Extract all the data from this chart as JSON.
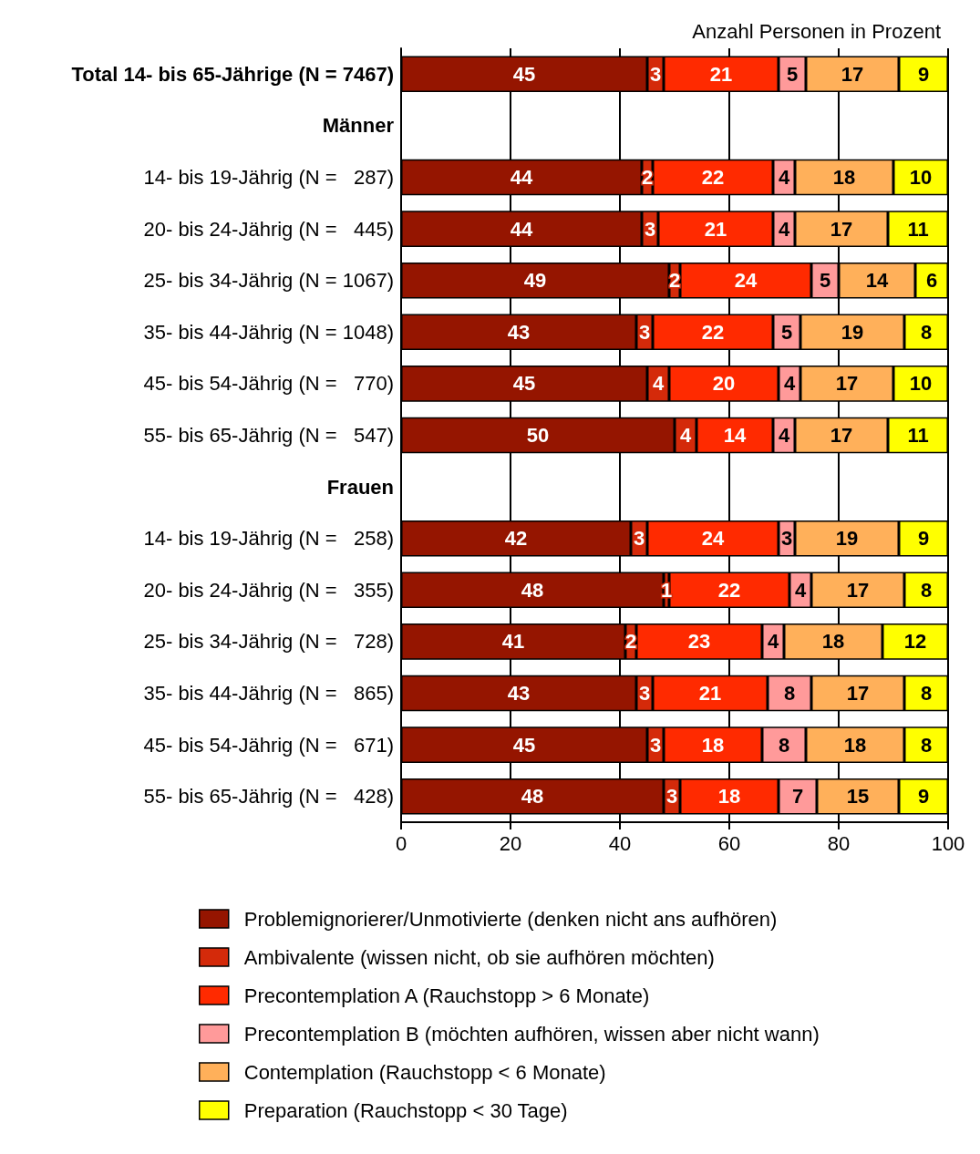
{
  "chart_data": {
    "type": "bar",
    "orientation": "horizontal",
    "stacked": true,
    "xlabel": "Anzahl Personen in Prozent",
    "categories": [
      "Total 14- bis 65-Jährige (N = 7467)",
      "Männer",
      "14- bis 19-Jährig (N =   287)",
      "20- bis 24-Jährig (N =   445)",
      "25- bis 34-Jährig (N = 1067)",
      "35- bis 44-Jährig (N = 1048)",
      "45- bis 54-Jährig (N =   770)",
      "55- bis 65-Jährig (N =   547)",
      "Frauen",
      "14- bis 19-Jährig (N =   258)",
      "20- bis 24-Jährig (N =   355)",
      "25- bis 34-Jährig (N =   728)",
      "35- bis 44-Jährig (N =   865)",
      "45- bis 54-Jährig (N =   671)",
      "55- bis 65-Jährig (N =   428)"
    ],
    "series": [
      {
        "name": "Problemignorierer/Unmotivierte (denken nicht ans aufhören)",
        "color": "#951500",
        "values": [
          45,
          null,
          44,
          44,
          49,
          43,
          45,
          50,
          null,
          42,
          48,
          41,
          43,
          45,
          48
        ]
      },
      {
        "name": "Ambivalente (wissen nicht, ob sie aufhören möchten)",
        "color": "#d42a0a",
        "values": [
          3,
          null,
          2,
          3,
          2,
          3,
          4,
          4,
          null,
          3,
          1,
          2,
          3,
          3,
          3
        ]
      },
      {
        "name": "Precontemplation A (Rauchstopp > 6 Monate)",
        "color": "#ff2a00",
        "values": [
          21,
          null,
          22,
          21,
          24,
          22,
          20,
          14,
          null,
          24,
          22,
          23,
          21,
          18,
          18
        ]
      },
      {
        "name": "Precontemplation B (möchten aufhören, wissen aber nicht wann)",
        "color": "#ff9a9a",
        "values": [
          5,
          null,
          4,
          4,
          5,
          5,
          4,
          4,
          null,
          3,
          4,
          4,
          8,
          8,
          7
        ]
      },
      {
        "name": "Contemplation (Rauchstopp < 6 Monate)",
        "color": "#ffb05a",
        "values": [
          17,
          null,
          18,
          17,
          14,
          19,
          17,
          17,
          null,
          19,
          17,
          18,
          17,
          18,
          15
        ]
      },
      {
        "name": "Preparation (Rauchstopp < 30 Tage)",
        "color": "#ffff00",
        "values": [
          9,
          null,
          10,
          11,
          6,
          8,
          10,
          11,
          null,
          9,
          8,
          12,
          8,
          8,
          9
        ]
      }
    ],
    "xlim": [
      0,
      100
    ],
    "xticks": [
      0,
      20,
      40,
      60,
      80,
      100
    ],
    "grid": "x",
    "legend": "bottom",
    "data_labels": true
  }
}
